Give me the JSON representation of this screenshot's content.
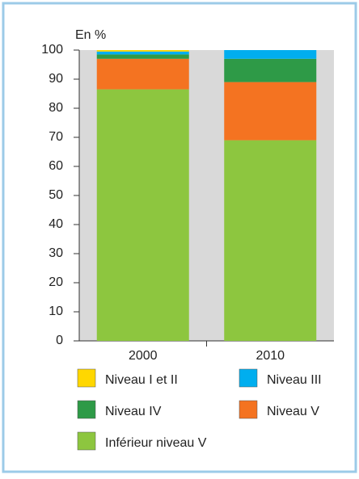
{
  "chart_data": {
    "type": "stacked_bar",
    "y_label": "En %",
    "categories": [
      "2000",
      "2010"
    ],
    "series": [
      {
        "name": "Inférieur niveau V",
        "color": "#8dc63f",
        "values": [
          86.5,
          69
        ]
      },
      {
        "name": "Niveau V",
        "color": "#f47321",
        "values": [
          10.5,
          20
        ]
      },
      {
        "name": "Niveau IV",
        "color": "#2e9a47",
        "values": [
          1.5,
          8
        ]
      },
      {
        "name": "Niveau III",
        "color": "#00aeef",
        "values": [
          1,
          3
        ]
      },
      {
        "name": "Niveau I et II",
        "color": "#ffd700",
        "values": [
          0.5,
          0
        ]
      }
    ],
    "ylim": [
      0,
      100
    ],
    "yticks": [
      0,
      10,
      20,
      30,
      40,
      50,
      60,
      70,
      80,
      90,
      100
    ]
  }
}
